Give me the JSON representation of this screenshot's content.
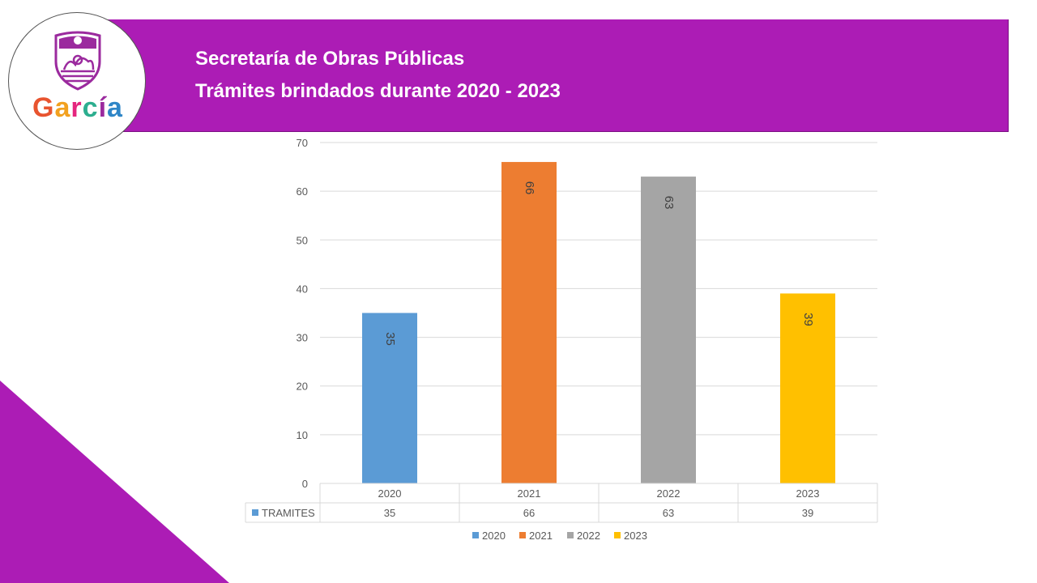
{
  "header": {
    "title_line1": "Secretaría de Obras Públicas",
    "title_line2": "Trámites brindados durante 2020 - 2023",
    "brand_color": "#ac1cb5"
  },
  "logo": {
    "text": "García",
    "letter_colors": [
      "#e8542f",
      "#f2a11f",
      "#e5267e",
      "#2cae8f",
      "#9b2a9e",
      "#2f86c7"
    ]
  },
  "chart_data": {
    "type": "bar",
    "title": "",
    "xlabel": "",
    "ylabel": "",
    "ylim": [
      0,
      70
    ],
    "yticks": [
      0,
      10,
      20,
      30,
      40,
      50,
      60,
      70
    ],
    "categories": [
      "2020",
      "2021",
      "2022",
      "2023"
    ],
    "values": [
      35,
      66,
      63,
      39
    ],
    "colors": [
      "#5b9bd5",
      "#ed7d31",
      "#a5a5a5",
      "#ffc000"
    ],
    "data_labels": [
      "35",
      "66",
      "63",
      "39"
    ],
    "grid": true,
    "data_table": {
      "row_label": "TRAMITES",
      "values": [
        "35",
        "66",
        "63",
        "39"
      ]
    },
    "legend": {
      "position": "bottom",
      "entries": [
        "2020",
        "2021",
        "2022",
        "2023"
      ]
    }
  }
}
